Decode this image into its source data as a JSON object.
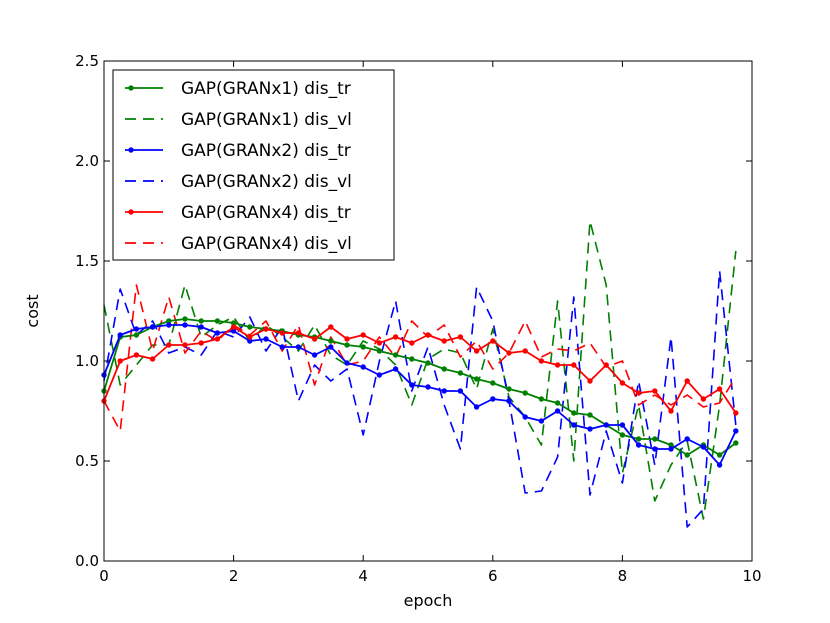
{
  "chart_data": {
    "type": "line",
    "title": "",
    "xlabel": "epoch",
    "ylabel": "cost",
    "xlim": [
      0,
      10
    ],
    "ylim": [
      0,
      2.5
    ],
    "xticks": [
      "0",
      "2",
      "4",
      "6",
      "8",
      "10"
    ],
    "yticks": [
      "0.0",
      "0.5",
      "1.0",
      "1.5",
      "2.0",
      "2.5"
    ],
    "legend_position": "top-left",
    "grid": false,
    "x": [
      0,
      0.25,
      0.5,
      0.75,
      1.0,
      1.25,
      1.5,
      1.75,
      2.0,
      2.25,
      2.5,
      2.75,
      3.0,
      3.25,
      3.5,
      3.75,
      4.0,
      4.25,
      4.5,
      4.75,
      5.0,
      5.25,
      5.5,
      5.75,
      6.0,
      6.25,
      6.5,
      6.75,
      7.0,
      7.25,
      7.5,
      7.75,
      8.0,
      8.25,
      8.5,
      8.75,
      9.0,
      9.25,
      9.5,
      9.75
    ],
    "series": [
      {
        "name": "GAP(GRANx1) dis_tr",
        "color": "#008000",
        "style": "solid-dot",
        "values": [
          0.85,
          1.12,
          1.13,
          1.17,
          1.2,
          1.21,
          1.2,
          1.2,
          1.19,
          1.17,
          1.16,
          1.15,
          1.13,
          1.12,
          1.1,
          1.08,
          1.07,
          1.05,
          1.03,
          1.01,
          0.99,
          0.96,
          0.94,
          0.91,
          0.89,
          0.86,
          0.84,
          0.81,
          0.79,
          0.74,
          0.73,
          0.68,
          0.63,
          0.61,
          0.61,
          0.58,
          0.53,
          0.58,
          0.53,
          0.59
        ]
      },
      {
        "name": "GAP(GRANx1) dis_vl",
        "color": "#008000",
        "style": "dashed",
        "values": [
          1.28,
          0.88,
          0.98,
          1.08,
          1.08,
          1.38,
          1.12,
          1.18,
          1.22,
          1.1,
          1.18,
          1.12,
          1.05,
          1.18,
          1.03,
          0.98,
          1.1,
          1.06,
          0.98,
          0.78,
          1.01,
          1.06,
          1.04,
          0.86,
          1.16,
          0.82,
          0.72,
          0.58,
          1.3,
          0.5,
          1.7,
          1.38,
          0.44,
          0.78,
          0.3,
          0.48,
          0.6,
          0.21,
          0.78,
          1.55
        ]
      },
      {
        "name": "GAP(GRANx2) dis_tr",
        "color": "#0000ff",
        "style": "solid-dot",
        "values": [
          0.93,
          1.13,
          1.16,
          1.17,
          1.18,
          1.18,
          1.17,
          1.14,
          1.15,
          1.1,
          1.11,
          1.07,
          1.07,
          1.03,
          1.07,
          0.99,
          0.97,
          0.93,
          0.96,
          0.88,
          0.87,
          0.85,
          0.85,
          0.77,
          0.81,
          0.8,
          0.72,
          0.7,
          0.75,
          0.68,
          0.66,
          0.68,
          0.68,
          0.58,
          0.56,
          0.56,
          0.61,
          0.57,
          0.48,
          0.65
        ]
      },
      {
        "name": "GAP(GRANx2) dis_vl",
        "color": "#0000ff",
        "style": "dashed",
        "values": [
          0.9,
          1.36,
          1.13,
          1.2,
          1.04,
          1.07,
          1.03,
          1.15,
          1.12,
          1.22,
          1.05,
          1.17,
          0.8,
          0.98,
          0.9,
          0.96,
          0.63,
          1.0,
          1.3,
          0.85,
          1.07,
          0.78,
          0.56,
          1.37,
          1.2,
          0.8,
          0.34,
          0.35,
          0.52,
          1.32,
          0.33,
          0.65,
          0.39,
          0.9,
          0.48,
          1.12,
          0.17,
          0.26,
          1.45,
          0.68
        ]
      },
      {
        "name": "GAP(GRANx4) dis_tr",
        "color": "#ff0000",
        "style": "solid-dot",
        "values": [
          0.8,
          1.0,
          1.03,
          1.01,
          1.08,
          1.08,
          1.09,
          1.11,
          1.17,
          1.12,
          1.16,
          1.14,
          1.14,
          1.11,
          1.17,
          1.11,
          1.13,
          1.09,
          1.12,
          1.09,
          1.13,
          1.1,
          1.12,
          1.05,
          1.1,
          1.04,
          1.05,
          1.0,
          0.98,
          0.98,
          0.9,
          0.98,
          0.89,
          0.84,
          0.85,
          0.75,
          0.9,
          0.81,
          0.86,
          0.74
        ]
      },
      {
        "name": "GAP(GRANx4) dis_vl",
        "color": "#ff0000",
        "style": "dashed",
        "values": [
          0.8,
          0.65,
          1.38,
          1.05,
          1.32,
          1.04,
          1.15,
          1.1,
          1.18,
          1.13,
          1.2,
          1.05,
          1.18,
          0.88,
          1.12,
          0.98,
          1.0,
          1.12,
          1.02,
          1.2,
          1.12,
          1.18,
          1.02,
          1.1,
          0.96,
          1.04,
          1.2,
          1.02,
          1.06,
          1.05,
          1.09,
          0.97,
          1.0,
          0.78,
          0.83,
          0.78,
          0.83,
          0.77,
          0.79,
          0.92
        ]
      }
    ]
  }
}
